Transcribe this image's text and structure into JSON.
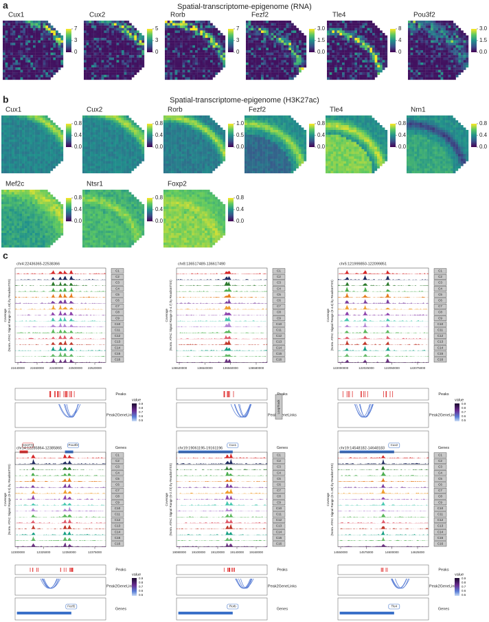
{
  "panel_a": {
    "label": "a",
    "title": "Spatial-transcriptome-epigenome (RNA)",
    "maps": [
      {
        "gene": "Cux1",
        "ticks": [
          "7",
          "3",
          "0"
        ]
      },
      {
        "gene": "Cux2",
        "ticks": [
          "5",
          "3",
          "0"
        ]
      },
      {
        "gene": "Rorb",
        "ticks": [
          "7",
          "3",
          "0"
        ]
      },
      {
        "gene": "Fezf2",
        "ticks": [
          "3.0",
          "1.5",
          "0.0"
        ]
      },
      {
        "gene": "Tle4",
        "ticks": [
          "8",
          "4",
          "0"
        ]
      },
      {
        "gene": "Pou3f2",
        "ticks": [
          "3.0",
          "1.5",
          "0.0"
        ]
      }
    ]
  },
  "panel_b": {
    "label": "b",
    "title": "Spatial-transcriptome-epigenome (H3K27ac)",
    "maps": [
      {
        "gene": "Cux1",
        "ticks": [
          "0.8",
          "0.4",
          "0.0"
        ]
      },
      {
        "gene": "Cux2",
        "ticks": [
          "0.8",
          "0.4",
          "0.0"
        ]
      },
      {
        "gene": "Rorb",
        "ticks": [
          "1.0",
          "0.5",
          "0.0"
        ]
      },
      {
        "gene": "Fezf2",
        "ticks": [
          "0.8",
          "0.4",
          "0.0"
        ]
      },
      {
        "gene": "Tle4",
        "ticks": [
          "0.8",
          "0.4",
          "0.0"
        ]
      },
      {
        "gene": "Nrn1",
        "ticks": [
          "0.8",
          "0.4",
          "0.0"
        ]
      },
      {
        "gene": "Mef2c",
        "ticks": [
          "0.8",
          "0.4",
          "0.0"
        ]
      },
      {
        "gene": "Ntsr1",
        "ticks": [
          "0.8",
          "0.4",
          "0.0"
        ]
      },
      {
        "gene": "Foxp2",
        "ticks": [
          "0.8",
          "0.4",
          "0.0"
        ]
      }
    ]
  },
  "panel_c": {
    "label": "c",
    "clusters": [
      "C1",
      "C2",
      "C3",
      "C4",
      "C5",
      "C6",
      "C7",
      "C8",
      "C9",
      "C10",
      "C11",
      "C12",
      "C13",
      "C14",
      "C15",
      "C16"
    ],
    "row_labels": [
      "Peaks",
      "Peak2GeneLinks",
      "Genes"
    ],
    "tracks": [
      {
        "region": "chr4:22436365-22538366",
        "ylabel": [
          "Coverage",
          "(Norm. ATAC Signal Range (0-1.45) by ReadsInTSS)"
        ],
        "xticks": [
          "22440000",
          "22460000",
          "22480000",
          "22500000",
          "22520000"
        ],
        "genes": [
          "Gm3773",
          "Pou3f2"
        ],
        "legend": {
          "title": "value",
          "ticks": [
            "0.9",
            "0.8",
            "0.7",
            "0.6",
            "0.5"
          ]
        }
      },
      {
        "region": "chr8:136517489-136617490",
        "ylabel": [
          "Coverage",
          "(Norm. ATAC Signal Range (0-4.7) by ReadsInTSS)"
        ],
        "xticks": [
          "136520000",
          "136540000",
          "136560000",
          "136580000"
        ],
        "genes": [
          "Cux1"
        ],
        "side_label": "LoopTrack"
      },
      {
        "region": "chr5:121999850-122099851",
        "ylabel": [
          "Coverage",
          "(Norm. ATAC Signal Range (0-4.6) by ReadsInTSS)"
        ],
        "xticks": [
          "122000000",
          "122025000",
          "122050000",
          "122075000"
        ],
        "genes": [
          "Cux2"
        ],
        "legend": {
          "title": "value",
          "ticks": [
            "0.9",
            "0.8",
            "0.7",
            "0.6",
            "0.5"
          ]
        }
      },
      {
        "region": "chr14:12285864-12385865",
        "ylabel": [
          "Coverage",
          "(Norm. ATAC Signal Range (0-0.5) by ReadsInTSS)"
        ],
        "xticks": [
          "12300000",
          "12325000",
          "12350000",
          "12375000"
        ],
        "genes": [
          "Fezf2"
        ],
        "legend": {
          "title": "value",
          "ticks": [
            "0.9",
            "0.8",
            "0.7",
            "0.6",
            "0.5"
          ]
        }
      },
      {
        "region": "chr19:19061195-19161196",
        "ylabel": [
          "Coverage",
          "(Norm. ATAC Signal Range (0-2.73) by ReadsInTSS)"
        ],
        "xticks": [
          "19080000",
          "19100000",
          "19120000",
          "19140000",
          "19160000"
        ],
        "genes": [
          "Rorb"
        ]
      },
      {
        "region": "chr19:14548182-14648183",
        "ylabel": [
          "Coverage",
          "(Norm. ATAC Signal Range (0-1.38) by ReadsInTSS)"
        ],
        "xticks": [
          "14550000",
          "14575000",
          "14600000",
          "14625000"
        ],
        "genes": [
          "Tle4"
        ],
        "legend": {
          "title": "value",
          "ticks": [
            "0.9",
            "0.8",
            "0.7",
            "0.6",
            "0.5"
          ]
        }
      }
    ]
  }
}
